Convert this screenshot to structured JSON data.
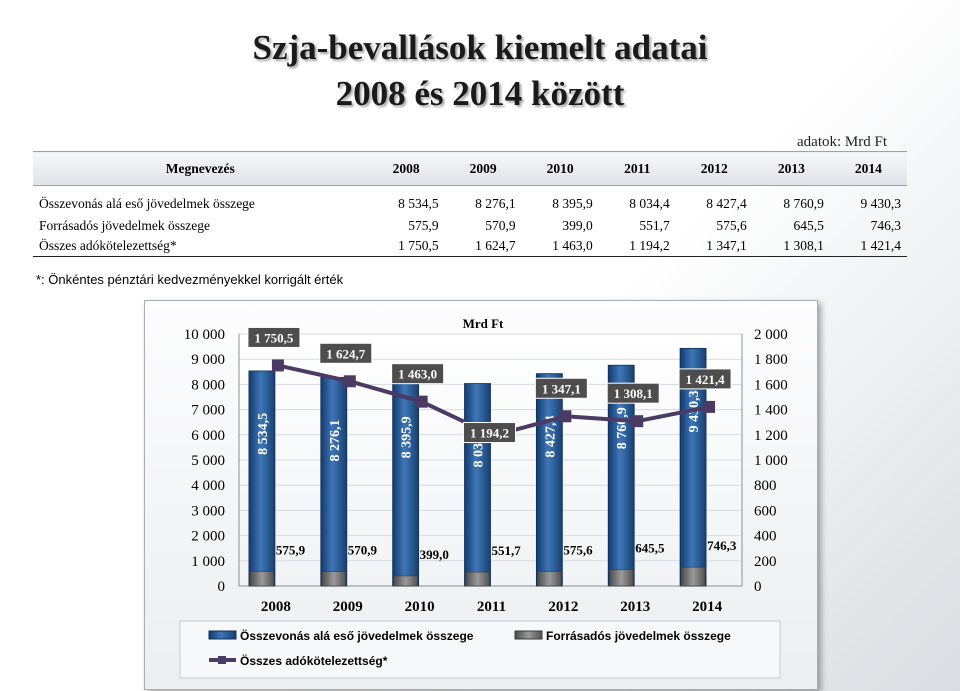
{
  "title_line1": "Szja-bevallások kiemelt adatai",
  "title_line2": "2008 és 2014 között",
  "source_note": "adatok: Mrd Ft",
  "table": {
    "header_label": "Megnevezés",
    "years": [
      "2008",
      "2009",
      "2010",
      "2011",
      "2012",
      "2013",
      "2014"
    ],
    "rows": [
      {
        "label": "Összevonás alá eső jövedelmek összege",
        "values": [
          "8 534,5",
          "8 276,1",
          "8 395,9",
          "8 034,4",
          "8 427,4",
          "8 760,9",
          "9 430,3"
        ]
      },
      {
        "label": "Forrásadós jövedelmek összege",
        "values": [
          "575,9",
          "570,9",
          "399,0",
          "551,7",
          "575,6",
          "645,5",
          "746,3"
        ]
      },
      {
        "label": "Összes adókötelezettség*",
        "values": [
          "1 750,5",
          "1 624,7",
          "1 463,0",
          "1 194,2",
          "1 347,1",
          "1 308,1",
          "1 421,4"
        ]
      }
    ]
  },
  "footnote": "*: Önkéntes pénztári kedvezményekkel korrigált érték",
  "chart_data": {
    "type": "bar",
    "title": "Mrd Ft",
    "categories": [
      "2008",
      "2009",
      "2010",
      "2011",
      "2012",
      "2013",
      "2014"
    ],
    "series": [
      {
        "name": "Összevonás alá eső jövedelmek összege",
        "axis": "left",
        "values": [
          8534.5,
          8276.1,
          8395.9,
          8034.4,
          8427.4,
          8760.9,
          9430.3
        ],
        "labels": [
          "8 534,5",
          "8 276,1",
          "8 395,9",
          "8 034,4",
          "8 427,4",
          "8 760,9",
          "9 430,3"
        ],
        "color": "#1f4e8c"
      },
      {
        "name": "Forrásadós jövedelmek összege",
        "axis": "left",
        "values": [
          575.9,
          570.9,
          399.0,
          551.7,
          575.6,
          645.5,
          746.3
        ],
        "labels": [
          "575,9",
          "570,9",
          "399,0",
          "551,7",
          "575,6",
          "645,5",
          "746,3"
        ],
        "color": "#6e6e6e"
      },
      {
        "name": "Összes adókötelezettség*",
        "type": "line",
        "axis": "right",
        "values": [
          1750.5,
          1624.7,
          1463.0,
          1194.2,
          1347.1,
          1308.1,
          1421.4
        ],
        "labels": [
          "1 750,5",
          "1 624,7",
          "1 463,0",
          "1 194,2",
          "1 347,1",
          "1 308,1",
          "1 421,4"
        ],
        "color": "#4b3a63"
      }
    ],
    "left_axis": {
      "min": 0,
      "max": 10000,
      "ticks": [
        "0",
        "1 000",
        "2 000",
        "3 000",
        "4 000",
        "5 000",
        "6 000",
        "7 000",
        "8 000",
        "9 000",
        "10 000"
      ]
    },
    "right_axis": {
      "min": 0,
      "max": 2000,
      "ticks": [
        "0",
        "200",
        "400",
        "600",
        "800",
        "1 000",
        "1 200",
        "1 400",
        "1 600",
        "1 800",
        "2 000"
      ]
    },
    "legend_position": "bottom"
  }
}
